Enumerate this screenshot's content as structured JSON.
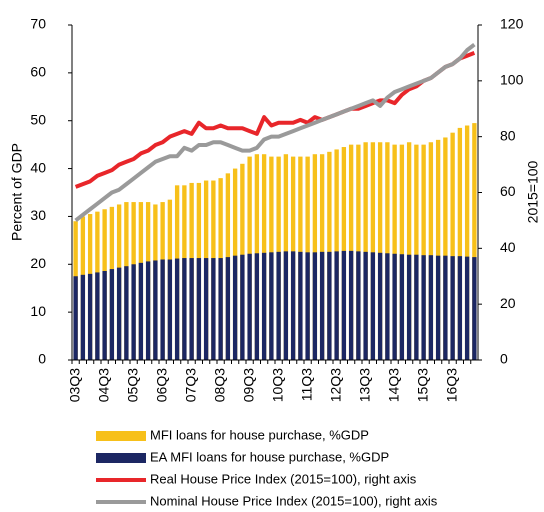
{
  "chart_data": {
    "type": "bar",
    "bar_mode": "overlay",
    "ylabel": "Percent of GDP",
    "y2label": "2015=100",
    "categories": [
      "03Q3",
      null,
      null,
      null,
      "04Q3",
      null,
      null,
      null,
      "05Q3",
      null,
      null,
      null,
      "06Q3",
      null,
      null,
      null,
      "07Q3",
      null,
      null,
      null,
      "08Q3",
      null,
      null,
      null,
      "09Q3",
      null,
      null,
      null,
      "10Q3",
      null,
      null,
      null,
      "11Q3",
      null,
      null,
      null,
      "12Q3",
      null,
      null,
      null,
      "13Q3",
      null,
      null,
      null,
      "14Q3",
      null,
      null,
      null,
      "15Q3",
      null,
      null,
      null,
      "16Q3",
      null,
      null,
      null
    ],
    "ylim": [
      0,
      70
    ],
    "yticks": [
      0,
      10,
      20,
      30,
      40,
      50,
      60,
      70
    ],
    "y2lim": [
      0,
      120
    ],
    "y2ticks": [
      0,
      20,
      40,
      60,
      80,
      100,
      120
    ],
    "series": [
      {
        "name": "MFI loans for house purchase, %GDP",
        "type": "bar",
        "color": "#f7c01a",
        "values": [
          29,
          30,
          30.5,
          31,
          31.5,
          32,
          32.5,
          33,
          33,
          33,
          33,
          32.5,
          33,
          33.5,
          36.5,
          36.5,
          37,
          37,
          37.5,
          37.5,
          38,
          39,
          40,
          41,
          42.5,
          43,
          43,
          42.5,
          42.5,
          43,
          42.5,
          42.5,
          42.5,
          43,
          43,
          43.5,
          44,
          44.5,
          45,
          45,
          45.5,
          45.5,
          45.5,
          45.5,
          45,
          45,
          45.5,
          45,
          45,
          45.5,
          46,
          46.5,
          47.5,
          48.5,
          49,
          49.5
        ]
      },
      {
        "name": "EA MFI loans for house purchase, %GDP",
        "type": "bar",
        "color": "#1c2763",
        "values": [
          17.5,
          17.8,
          18,
          18.3,
          18.6,
          19,
          19.3,
          19.6,
          20,
          20.3,
          20.6,
          20.8,
          21,
          21,
          21.2,
          21.3,
          21.3,
          21.3,
          21.3,
          21.3,
          21.3,
          21.5,
          21.8,
          22,
          22.2,
          22.3,
          22.4,
          22.5,
          22.6,
          22.7,
          22.7,
          22.6,
          22.5,
          22.5,
          22.6,
          22.6,
          22.7,
          22.8,
          22.8,
          22.7,
          22.6,
          22.5,
          22.4,
          22.3,
          22.2,
          22.1,
          22,
          22,
          21.9,
          21.9,
          21.8,
          21.8,
          21.7,
          21.7,
          21.6,
          21.5
        ]
      },
      {
        "name": "Real House Price Index (2015=100), right axis",
        "type": "line",
        "axis": "y2",
        "color": "#e8262a",
        "values": [
          62,
          63,
          64,
          66,
          67,
          68,
          70,
          71,
          72,
          74,
          75,
          77,
          78,
          80,
          81,
          82,
          81,
          85,
          83,
          83,
          84,
          83,
          83,
          83,
          82,
          81,
          87,
          84,
          85,
          85,
          85,
          86,
          85,
          87,
          86,
          87,
          88,
          89,
          90,
          90,
          91,
          92,
          93,
          93,
          92,
          95,
          97,
          98,
          100,
          101,
          103,
          105,
          106,
          108,
          109,
          110
        ]
      },
      {
        "name": "Nominal House Price Index (2015=100), right axis",
        "type": "line",
        "axis": "y2",
        "color": "#9a9a9a",
        "values": [
          50,
          52,
          54,
          56,
          58,
          60,
          61,
          63,
          65,
          67,
          69,
          71,
          72,
          73,
          73,
          76,
          75,
          77,
          77,
          78,
          78,
          77,
          76,
          75,
          75,
          76,
          79,
          80,
          80,
          81,
          82,
          83,
          84,
          85,
          86,
          87,
          88,
          89,
          90,
          91,
          92,
          93,
          91,
          94,
          96,
          97,
          98,
          99,
          100,
          101,
          103,
          105,
          106,
          108,
          111,
          113
        ]
      }
    ]
  }
}
